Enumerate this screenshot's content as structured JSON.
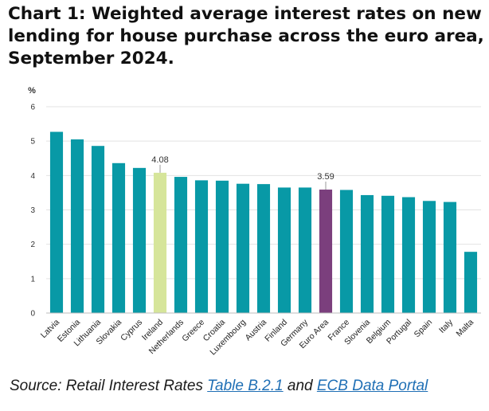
{
  "chart_data": {
    "type": "bar",
    "title": "Chart 1: Weighted average interest rates on new lending for house purchase across the euro area, September 2024.",
    "ylabel": "%",
    "ylim": [
      0,
      6
    ],
    "yticks": [
      0,
      1,
      2,
      3,
      4,
      5,
      6
    ],
    "grid": true,
    "categories": [
      "Latvia",
      "Estonia",
      "Lithuania",
      "Slovakia",
      "Cyprus",
      "Ireland",
      "Netherlands",
      "Greece",
      "Croatia",
      "Luxembourg",
      "Austria",
      "Finland",
      "Germany",
      "Euro Area",
      "France",
      "Slovenia",
      "Belgium",
      "Portugal",
      "Spain",
      "Italy",
      "Malta"
    ],
    "values": [
      5.27,
      5.05,
      4.86,
      4.36,
      4.22,
      4.08,
      3.96,
      3.86,
      3.85,
      3.76,
      3.75,
      3.65,
      3.65,
      3.59,
      3.58,
      3.43,
      3.41,
      3.37,
      3.26,
      3.23,
      1.78
    ],
    "highlights": {
      "Ireland": {
        "color": "#d6e59a",
        "label": "4.08"
      },
      "Euro Area": {
        "color": "#7b3f7d",
        "label": "3.59"
      }
    },
    "bar_color": "#0899a6"
  },
  "source": {
    "prefix": "Source: Retail Interest Rates ",
    "link1": "Table B.2.1",
    "middle": " and ",
    "link2": "ECB Data Portal"
  }
}
